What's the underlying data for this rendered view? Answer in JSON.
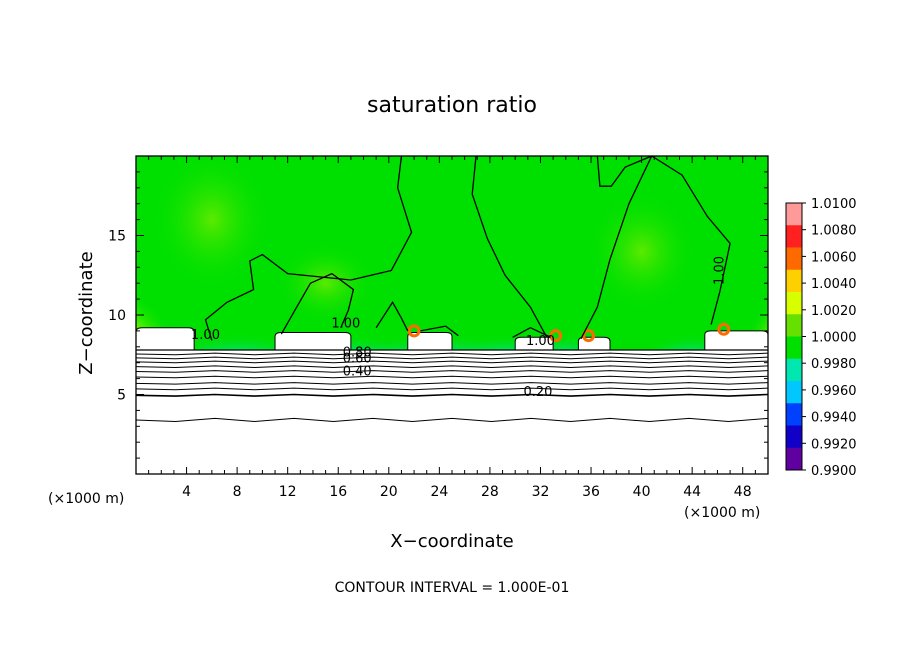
{
  "chart_data": {
    "type": "heatmap",
    "title": "saturation ratio",
    "xlabel": "X−coordinate",
    "ylabel": "Z−coordinate",
    "x_unit_left": "(×1000 m)",
    "x_unit_right": "(×1000 m)",
    "xlim": [
      0,
      50
    ],
    "ylim": [
      0,
      20
    ],
    "x_ticks": [
      4,
      8,
      12,
      16,
      20,
      24,
      28,
      32,
      36,
      40,
      44,
      48
    ],
    "y_ticks": [
      5,
      10,
      15
    ],
    "colorbar": {
      "min": 0.99,
      "max": 1.01,
      "labels": [
        "1.0100",
        "1.0080",
        "1.0060",
        "1.0040",
        "1.0020",
        "1.0000",
        "0.9980",
        "0.9960",
        "0.9940",
        "0.9920",
        "0.9900"
      ],
      "colors": [
        "#ff9a9a",
        "#ff2020",
        "#ff6a00",
        "#ffd000",
        "#d8ff00",
        "#66e000",
        "#00e000",
        "#00e8b0",
        "#00c8ff",
        "#0040ff",
        "#1000c8",
        "#6000a0"
      ]
    },
    "contour_labels": [
      {
        "text": "1.00",
        "x": 16.6,
        "z": 9.2
      },
      {
        "text": "1.00",
        "x": 46.5,
        "z": 12.8
      },
      {
        "text": "1.00",
        "x": 32.0,
        "z": 8.1
      },
      {
        "text": "0.80",
        "x": 17.5,
        "z": 7.4
      },
      {
        "text": "0.60",
        "x": 17.5,
        "z": 7.0
      },
      {
        "text": "0.40",
        "x": 17.5,
        "z": 6.2
      },
      {
        "text": "0.20",
        "x": 31.8,
        "z": 4.9
      },
      {
        "text": "1.00",
        "x": 5.5,
        "z": 8.5
      }
    ],
    "dry_layer_top_z": 7.8,
    "contour_interval_text": "CONTOUR INTERVAL =  1.000E-01"
  }
}
